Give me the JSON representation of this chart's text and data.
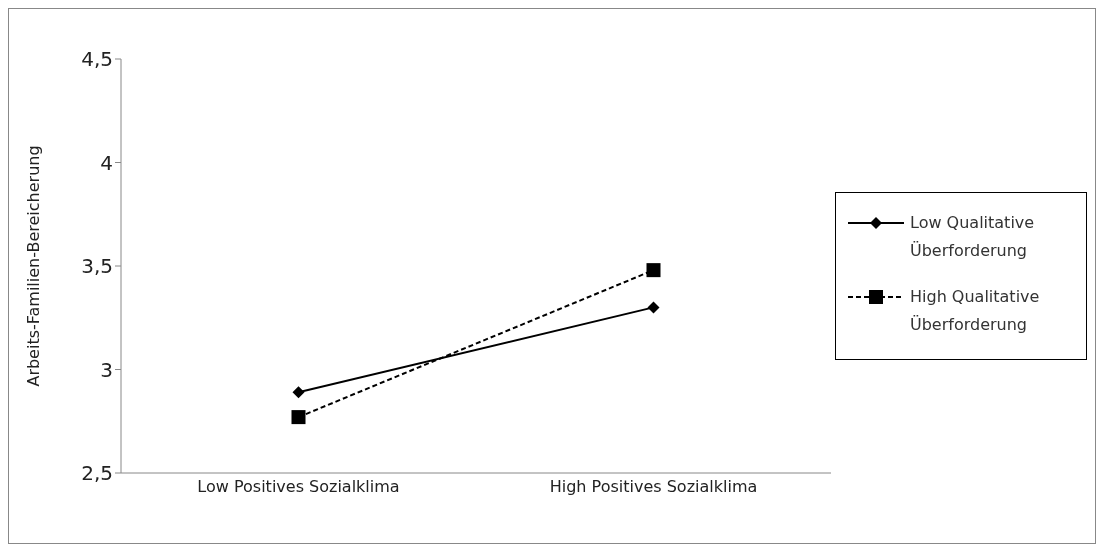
{
  "chart_data": {
    "type": "line",
    "ylabel": "Arbeits-Familien-Bereicherung",
    "categories": [
      "Low Positives Sozialklima",
      "High Positives Sozialklima"
    ],
    "series": [
      {
        "name": "Low Qualitative Überforderung",
        "color": "#000000",
        "values": [
          2.89,
          3.3
        ],
        "marker": "diamond",
        "line_style": "solid"
      },
      {
        "name": "High Qualitative Überforderung",
        "color": "#000000",
        "values": [
          2.77,
          3.48
        ],
        "marker": "square",
        "line_style": "dashed"
      }
    ],
    "ylim": [
      2.5,
      4.5
    ],
    "yticks": [
      {
        "value": 2.5,
        "label": "2,5"
      },
      3,
      {
        "value": 3.5,
        "label": "3,5"
      },
      4,
      {
        "value": 4.5,
        "label": "4,5"
      }
    ],
    "grid": false,
    "legend": "right"
  }
}
